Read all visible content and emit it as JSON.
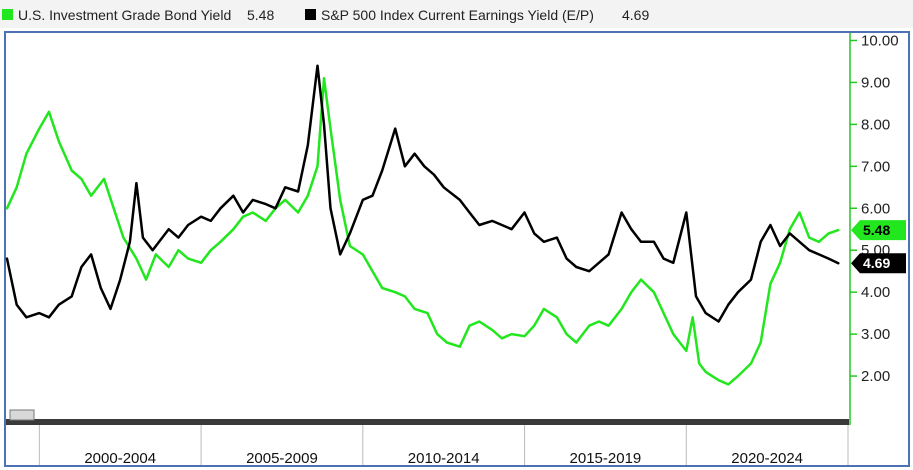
{
  "chart_data": {
    "type": "line",
    "ylim": [
      1.0,
      10.25
    ],
    "y_ticks": [
      "2.00",
      "3.00",
      "4.00",
      "5.00",
      "6.00",
      "7.00",
      "8.00",
      "9.00",
      "10.00"
    ],
    "categories": [
      "2000-2004",
      "2005-2009",
      "2010-2014",
      "2015-2019",
      "2020-2024"
    ],
    "xlim": [
      1999.0,
      2025.0
    ],
    "grid": false,
    "legend_position": "top-left",
    "series": [
      {
        "name": "U.S. Investment Grade Bond Yield",
        "last_value": "5.48",
        "color": "#22e61e",
        "badge_text_color": "#000000",
        "x": [
          1999.0,
          1999.3,
          1999.6,
          2000.0,
          2000.3,
          2000.6,
          2001.0,
          2001.3,
          2001.6,
          2002.0,
          2002.3,
          2002.6,
          2003.0,
          2003.3,
          2003.6,
          2004.0,
          2004.3,
          2004.6,
          2005.0,
          2005.3,
          2005.6,
          2006.0,
          2006.3,
          2006.6,
          2007.0,
          2007.3,
          2007.6,
          2008.0,
          2008.3,
          2008.6,
          2008.8,
          2009.0,
          2009.3,
          2009.6,
          2010.0,
          2010.3,
          2010.6,
          2011.0,
          2011.3,
          2011.6,
          2012.0,
          2012.3,
          2012.6,
          2013.0,
          2013.3,
          2013.6,
          2014.0,
          2014.3,
          2014.6,
          2015.0,
          2015.3,
          2015.6,
          2016.0,
          2016.3,
          2016.6,
          2017.0,
          2017.3,
          2017.6,
          2018.0,
          2018.3,
          2018.6,
          2019.0,
          2019.3,
          2019.6,
          2020.0,
          2020.2,
          2020.4,
          2020.6,
          2021.0,
          2021.3,
          2021.6,
          2022.0,
          2022.3,
          2022.6,
          2022.9,
          2023.2,
          2023.5,
          2023.8,
          2024.1,
          2024.4,
          2024.7
        ],
        "y": [
          6.0,
          6.5,
          7.3,
          7.9,
          8.3,
          7.6,
          6.9,
          6.7,
          6.3,
          6.7,
          6.0,
          5.3,
          4.8,
          4.3,
          4.9,
          4.6,
          5.0,
          4.8,
          4.7,
          5.0,
          5.2,
          5.5,
          5.8,
          5.9,
          5.7,
          6.0,
          6.2,
          5.9,
          6.3,
          7.0,
          9.1,
          7.9,
          6.2,
          5.1,
          4.9,
          4.5,
          4.1,
          4.0,
          3.9,
          3.6,
          3.5,
          3.0,
          2.8,
          2.7,
          3.2,
          3.3,
          3.1,
          2.9,
          3.0,
          2.95,
          3.2,
          3.6,
          3.4,
          3.0,
          2.8,
          3.2,
          3.3,
          3.2,
          3.6,
          4.0,
          4.3,
          4.0,
          3.5,
          3.0,
          2.6,
          3.4,
          2.3,
          2.1,
          1.9,
          1.8,
          2.0,
          2.3,
          2.8,
          4.2,
          4.7,
          5.5,
          5.9,
          5.3,
          5.2,
          5.4,
          5.48
        ]
      },
      {
        "name": "S&P 500 Index Current Earnings Yield (E/P)",
        "last_value": "4.69",
        "color": "#000000",
        "badge_text_color": "#ffffff",
        "x": [
          1999.0,
          1999.3,
          1999.6,
          2000.0,
          2000.3,
          2000.6,
          2001.0,
          2001.3,
          2001.6,
          2001.9,
          2002.2,
          2002.5,
          2002.8,
          2003.0,
          2003.2,
          2003.5,
          2004.0,
          2004.3,
          2004.6,
          2005.0,
          2005.3,
          2005.6,
          2006.0,
          2006.3,
          2006.6,
          2007.0,
          2007.3,
          2007.6,
          2008.0,
          2008.3,
          2008.6,
          2008.8,
          2009.0,
          2009.3,
          2009.6,
          2010.0,
          2010.3,
          2010.6,
          2011.0,
          2011.3,
          2011.6,
          2011.9,
          2012.2,
          2012.5,
          2013.0,
          2013.3,
          2013.6,
          2014.0,
          2014.3,
          2014.6,
          2015.0,
          2015.3,
          2015.6,
          2016.0,
          2016.3,
          2016.6,
          2017.0,
          2017.3,
          2017.6,
          2018.0,
          2018.3,
          2018.6,
          2019.0,
          2019.3,
          2019.6,
          2020.0,
          2020.3,
          2020.6,
          2021.0,
          2021.3,
          2021.6,
          2022.0,
          2022.3,
          2022.6,
          2022.9,
          2023.2,
          2023.5,
          2023.8,
          2024.1,
          2024.4,
          2024.7
        ],
        "y": [
          4.8,
          3.7,
          3.4,
          3.5,
          3.4,
          3.7,
          3.9,
          4.6,
          4.9,
          4.1,
          3.6,
          4.3,
          5.2,
          6.6,
          5.3,
          5.0,
          5.5,
          5.3,
          5.6,
          5.8,
          5.7,
          6.0,
          6.3,
          5.9,
          6.2,
          6.1,
          6.0,
          6.5,
          6.4,
          7.5,
          9.4,
          8.0,
          6.0,
          4.9,
          5.4,
          6.2,
          6.3,
          6.9,
          7.9,
          7.0,
          7.3,
          7.0,
          6.8,
          6.5,
          6.2,
          5.9,
          5.6,
          5.7,
          5.6,
          5.5,
          5.9,
          5.4,
          5.2,
          5.3,
          4.8,
          4.6,
          4.5,
          4.7,
          4.9,
          5.9,
          5.5,
          5.2,
          5.2,
          4.8,
          4.7,
          5.9,
          3.9,
          3.5,
          3.3,
          3.7,
          4.0,
          4.3,
          5.2,
          5.6,
          5.1,
          5.4,
          5.2,
          5.0,
          4.9,
          4.8,
          4.69
        ]
      }
    ]
  }
}
